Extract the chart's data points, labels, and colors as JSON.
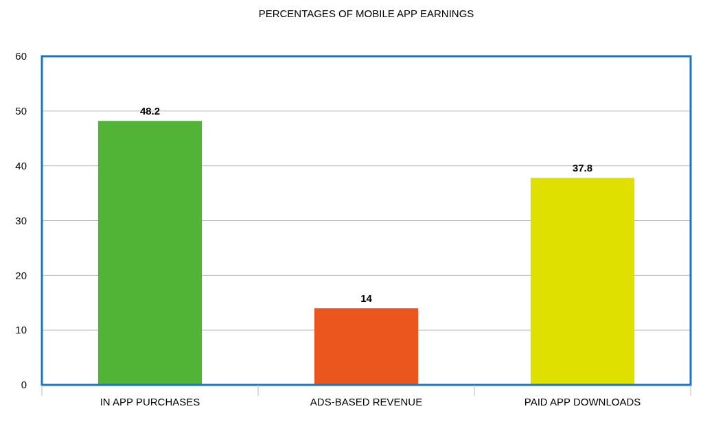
{
  "chart_data": {
    "type": "bar",
    "title": "PERCENTAGES OF MOBILE APP EARNINGS",
    "categories": [
      "IN APP PURCHASES",
      "ADS-BASED REVENUE",
      "PAID APP DOWNLOADS"
    ],
    "values": [
      48.2,
      14,
      37.8
    ],
    "colors": [
      "#52b436",
      "#ea561e",
      "#dfe000"
    ],
    "ylim": [
      0,
      60
    ],
    "yticks": [
      0,
      10,
      20,
      30,
      40,
      50,
      60
    ],
    "grid": "y",
    "data_labels": true
  }
}
